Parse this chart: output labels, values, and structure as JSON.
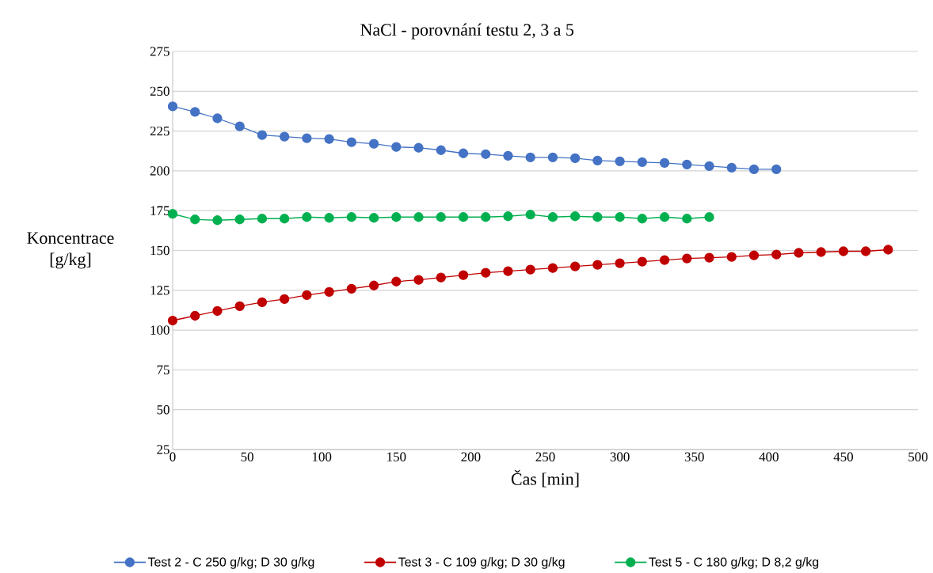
{
  "chart_data": {
    "type": "line",
    "title": "NaCl - porovnání testu 2, 3 a 5",
    "xlabel": "Čas [min]",
    "ylabel": "Koncentrace [g/kg]",
    "xlim": [
      0,
      500
    ],
    "xticks": [
      0,
      50,
      100,
      150,
      200,
      250,
      300,
      350,
      400,
      450,
      500
    ],
    "ylim": [
      25,
      275
    ],
    "yticks": [
      25,
      50,
      75,
      100,
      125,
      150,
      175,
      200,
      225,
      250,
      275
    ],
    "grid": "y",
    "legend": "bottom",
    "marker": "circle",
    "line_style": "solid",
    "series": [
      {
        "name": "Test 2 - C 250 g/kg; D 30 g/kg",
        "color": "#4472c4",
        "x": [
          0,
          15,
          30,
          45,
          60,
          75,
          90,
          105,
          120,
          135,
          150,
          165,
          180,
          195,
          210,
          225,
          240,
          255,
          270,
          285,
          300,
          315,
          330,
          345,
          360,
          375,
          390,
          405
        ],
        "values": [
          240.5,
          237,
          233,
          228,
          222.5,
          221.5,
          220.5,
          220,
          218,
          217,
          215,
          214.5,
          213,
          211,
          210.5,
          209.5,
          208.5,
          208.5,
          208,
          206.5,
          206,
          205.5,
          205,
          204,
          203,
          202,
          201,
          201
        ]
      },
      {
        "name": "Test 3 - C 109 g/kg; D 30 g/kg",
        "color": "#c00000",
        "x": [
          0,
          15,
          30,
          45,
          60,
          75,
          90,
          105,
          120,
          135,
          150,
          165,
          180,
          195,
          210,
          225,
          240,
          255,
          270,
          285,
          300,
          315,
          330,
          345,
          360,
          375,
          390,
          405,
          420,
          435,
          450,
          465,
          480
        ],
        "values": [
          106,
          109,
          112,
          115,
          117.5,
          119.5,
          122,
          124,
          126,
          128,
          130.5,
          131.5,
          133,
          134.5,
          136,
          137,
          138,
          139,
          140,
          141,
          142,
          143,
          144,
          145,
          145.5,
          146,
          147,
          147.5,
          148.5,
          149,
          149.5,
          149.5,
          150.5
        ]
      },
      {
        "name": "Test 5 - C 180 g/kg; D 8,2 g/kg",
        "color": "#00b050",
        "x": [
          0,
          15,
          30,
          45,
          60,
          75,
          90,
          105,
          120,
          135,
          150,
          165,
          180,
          195,
          210,
          225,
          240,
          255,
          270,
          285,
          300,
          315,
          330,
          345,
          360
        ],
        "values": [
          173,
          169.5,
          169,
          169.5,
          170,
          170,
          171,
          170.5,
          171,
          170.5,
          171,
          171,
          171,
          171,
          171,
          171.5,
          172.5,
          171,
          171.5,
          171,
          171,
          170,
          171,
          170,
          171
        ]
      }
    ]
  }
}
